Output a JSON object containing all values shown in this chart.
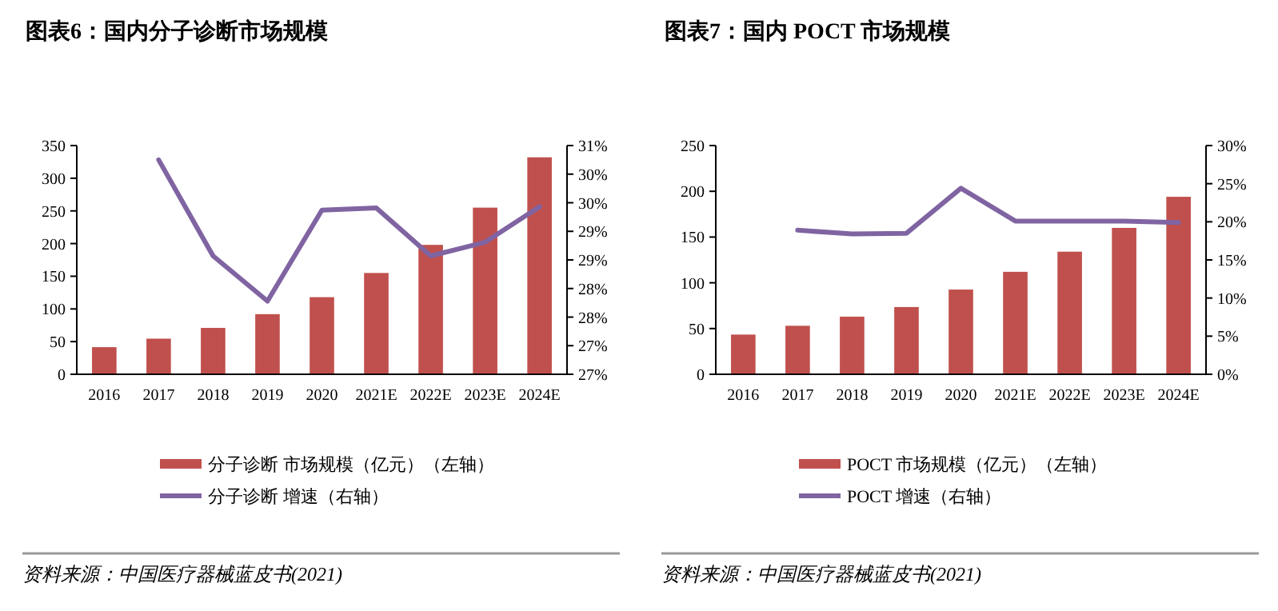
{
  "chart_data": [
    {
      "type": "bar",
      "title": "图表6：国内分子诊断市场规模",
      "categories": [
        "2016",
        "2017",
        "2018",
        "2019",
        "2020",
        "2021E",
        "2022E",
        "2023E",
        "2024E"
      ],
      "series": [
        {
          "name": "分子诊断 市场规模（亿元）（左轴）",
          "color": "#c0504d",
          "values": [
            41.5,
            54.5,
            71,
            92,
            118,
            155,
            198,
            255,
            332
          ]
        },
        {
          "name": "分子诊断 增速（右轴）",
          "type": "line",
          "axis": "y2",
          "color": "#8064a2",
          "values": [
            null,
            30.75,
            29.07,
            28.28,
            29.87,
            29.91,
            29.07,
            29.31,
            29.93
          ]
        }
      ],
      "ylim": [
        0,
        350
      ],
      "yticks": [
        0,
        50,
        100,
        150,
        200,
        250,
        300,
        350
      ],
      "y2lim": [
        27,
        31
      ],
      "y2ticks": [
        {
          "value": 27,
          "label": "27%"
        },
        {
          "value": 27.5,
          "label": "27%"
        },
        {
          "value": 28,
          "label": "28%"
        },
        {
          "value": 28.5,
          "label": "28%"
        },
        {
          "value": 29,
          "label": "29%"
        },
        {
          "value": 29.5,
          "label": "29%"
        },
        {
          "value": 30,
          "label": "30%"
        },
        {
          "value": 30.5,
          "label": "30%"
        },
        {
          "value": 31,
          "label": "31%"
        }
      ],
      "legend": "bottom",
      "annotations": [
        "资料来源：中国医疗器械蓝皮书(2021)"
      ]
    },
    {
      "type": "bar",
      "title": "图表7：国内 POCT 市场规模",
      "categories": [
        "2016",
        "2017",
        "2018",
        "2019",
        "2020",
        "2021E",
        "2022E",
        "2023E",
        "2024E"
      ],
      "series": [
        {
          "name": "POCT 市场规模（亿元）（左轴）",
          "color": "#c0504d",
          "values": [
            43.4,
            53,
            63,
            73.5,
            92.6,
            112,
            134,
            160,
            194
          ]
        },
        {
          "name": "POCT 增速（右轴）",
          "type": "line",
          "axis": "y2",
          "color": "#8064a2",
          "values": [
            null,
            18.9,
            18.4,
            18.5,
            24.4,
            20.1,
            20.1,
            20.1,
            19.9
          ]
        }
      ],
      "ylim": [
        0,
        250
      ],
      "yticks": [
        0,
        50,
        100,
        150,
        200,
        250
      ],
      "y2lim": [
        0,
        30
      ],
      "y2ticks": [
        {
          "value": 0,
          "label": "0%"
        },
        {
          "value": 5,
          "label": "5%"
        },
        {
          "value": 10,
          "label": "10%"
        },
        {
          "value": 15,
          "label": "15%"
        },
        {
          "value": 20,
          "label": "20%"
        },
        {
          "value": 25,
          "label": "25%"
        },
        {
          "value": 30,
          "label": "30%"
        }
      ],
      "legend": "bottom",
      "annotations": [
        "资料来源：中国医疗器械蓝皮书(2021)"
      ]
    }
  ]
}
